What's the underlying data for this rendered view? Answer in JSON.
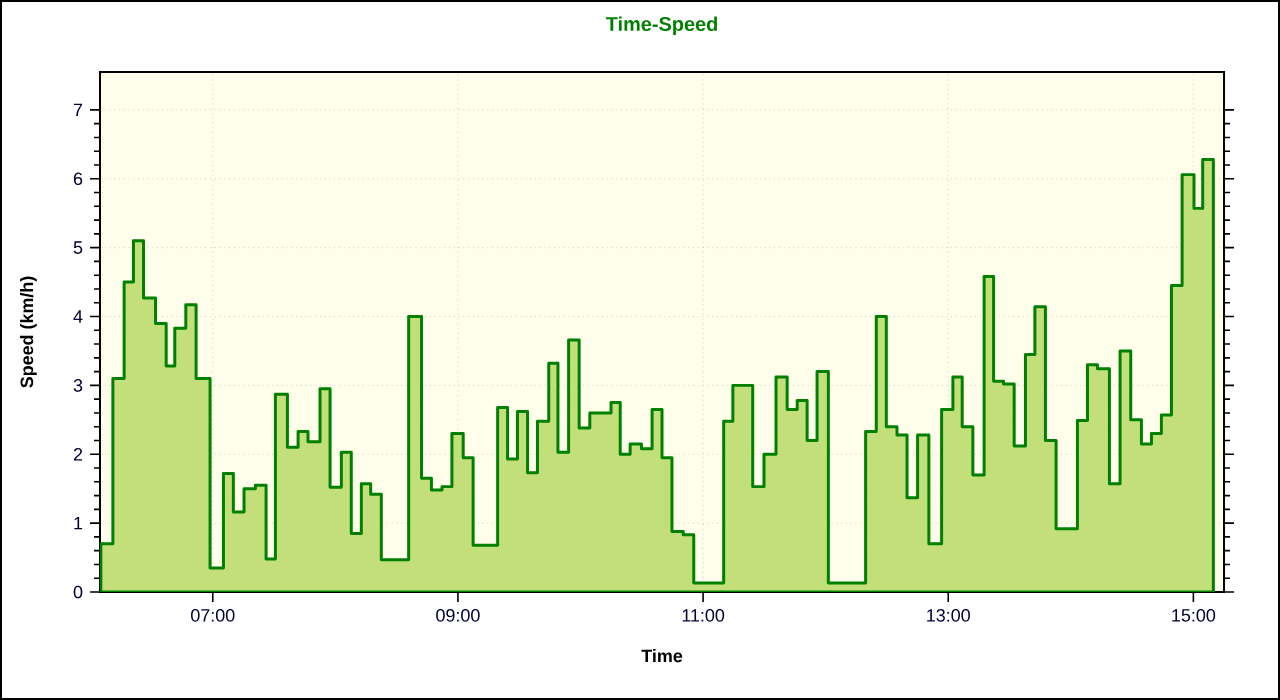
{
  "chart_data": {
    "type": "area",
    "title": "Time-Speed",
    "xlabel": "Time",
    "ylabel": "Speed (km/h)",
    "x": [
      6.087,
      6.185,
      6.277,
      6.353,
      6.435,
      6.533,
      6.62,
      6.69,
      6.78,
      6.864,
      6.978,
      7.087,
      7.168,
      7.255,
      7.348,
      7.435,
      7.511,
      7.609,
      7.696,
      7.777,
      7.875,
      7.957,
      8.049,
      8.13,
      8.212,
      8.288,
      8.375,
      8.598,
      8.703,
      8.784,
      8.87,
      8.951,
      9.043,
      9.124,
      9.324,
      9.405,
      9.486,
      9.568,
      9.649,
      9.741,
      9.816,
      9.903,
      9.989,
      10.076,
      10.249,
      10.324,
      10.405,
      10.497,
      10.584,
      10.665,
      10.746,
      10.838,
      10.924,
      11.168,
      11.243,
      11.405,
      11.497,
      11.595,
      11.686,
      11.768,
      11.849,
      11.93,
      12.022,
      12.326,
      12.413,
      12.495,
      12.582,
      12.664,
      12.75,
      12.842,
      12.946,
      13.038,
      13.114,
      13.201,
      13.293,
      13.37,
      13.451,
      13.538,
      13.63,
      13.707,
      13.793,
      13.88,
      14.054,
      14.136,
      14.217,
      14.315,
      14.402,
      14.489,
      14.576,
      14.658,
      14.739,
      14.821,
      14.908,
      15.005,
      15.076,
      15.163
    ],
    "series": [
      {
        "color": "#c2df7a",
        "values": [
          0.7,
          3.1,
          4.5,
          5.1,
          4.27,
          3.9,
          3.28,
          3.83,
          4.17,
          3.1,
          0.35,
          1.72,
          1.16,
          1.5,
          1.55,
          0.48,
          2.87,
          2.1,
          2.33,
          2.18,
          2.95,
          1.52,
          2.03,
          0.85,
          1.57,
          1.42,
          0.47,
          4.0,
          1.65,
          1.48,
          1.53,
          2.3,
          1.95,
          0.68,
          2.68,
          1.93,
          2.62,
          1.73,
          2.48,
          3.32,
          2.03,
          3.66,
          2.38,
          2.6,
          2.75,
          2.0,
          2.15,
          2.08,
          2.65,
          1.95,
          0.88,
          0.83,
          0.13,
          2.48,
          3.0,
          1.53,
          2.0,
          3.12,
          2.65,
          2.78,
          2.2,
          3.2,
          0.13,
          2.33,
          4.0,
          2.4,
          2.28,
          1.37,
          2.28,
          0.7,
          2.65,
          3.12,
          2.4,
          1.7,
          4.58,
          3.06,
          3.02,
          2.12,
          3.45,
          4.14,
          2.2,
          0.92,
          2.49,
          3.3,
          3.24,
          1.57,
          3.5,
          2.5,
          2.15,
          2.3,
          2.57,
          4.45,
          6.06,
          5.57,
          6.28,
          6.28
        ]
      }
    ],
    "xlim": [
      6.08,
      15.25
    ],
    "ylim": [
      0,
      7.55
    ],
    "xticks": [
      {
        "value": 7,
        "label": "07:00"
      },
      {
        "value": 9,
        "label": "09:00"
      },
      {
        "value": 11,
        "label": "11:00"
      },
      {
        "value": 13,
        "label": "13:00"
      },
      {
        "value": 15,
        "label": "15:00"
      }
    ],
    "yticks": [
      0,
      1,
      2,
      3,
      4,
      5,
      6,
      7
    ],
    "grid": true,
    "marker": "none",
    "line_style": "solid"
  }
}
